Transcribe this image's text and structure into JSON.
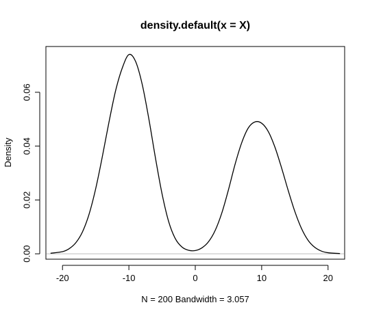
{
  "chart_data": {
    "type": "line",
    "title": "density.default(x = X)",
    "xlabel": "N = 200   Bandwidth = 3.057",
    "ylabel": "Density",
    "xlim": [
      -22.5,
      22.5
    ],
    "ylim": [
      -0.002,
      0.077
    ],
    "xticks": [
      -20,
      -10,
      0,
      10,
      20
    ],
    "xtick_labels": [
      "-20",
      "-10",
      "0",
      "10",
      "20"
    ],
    "yticks": [
      0.0,
      0.02,
      0.04,
      0.06
    ],
    "ytick_labels": [
      "0.00",
      "0.02",
      "0.04",
      "0.06"
    ],
    "baseline": 0,
    "grid": false,
    "series": [
      {
        "x": [
          -21.8,
          -20,
          -19,
          -18,
          -17,
          -16,
          -15,
          -14,
          -13,
          -12,
          -11,
          -10,
          -9,
          -8,
          -7,
          -6,
          -5,
          -4,
          -3,
          -2,
          -1,
          0,
          1,
          2,
          3,
          4,
          5,
          6,
          7,
          8,
          9,
          10,
          11,
          12,
          13,
          14,
          15,
          16,
          17,
          18,
          19,
          20,
          21.8
        ],
        "y": [
          0.0002,
          0.0008,
          0.0019,
          0.0041,
          0.0081,
          0.0147,
          0.0242,
          0.0361,
          0.0489,
          0.0606,
          0.069,
          0.074,
          0.0715,
          0.063,
          0.0502,
          0.0356,
          0.0222,
          0.0119,
          0.0056,
          0.0025,
          0.0013,
          0.0012,
          0.0022,
          0.0045,
          0.0087,
          0.0152,
          0.0238,
          0.0333,
          0.0413,
          0.0468,
          0.049,
          0.0485,
          0.0454,
          0.0396,
          0.0319,
          0.0235,
          0.0157,
          0.0094,
          0.005,
          0.0024,
          0.001,
          0.0004,
          0.0001
        ]
      }
    ]
  }
}
